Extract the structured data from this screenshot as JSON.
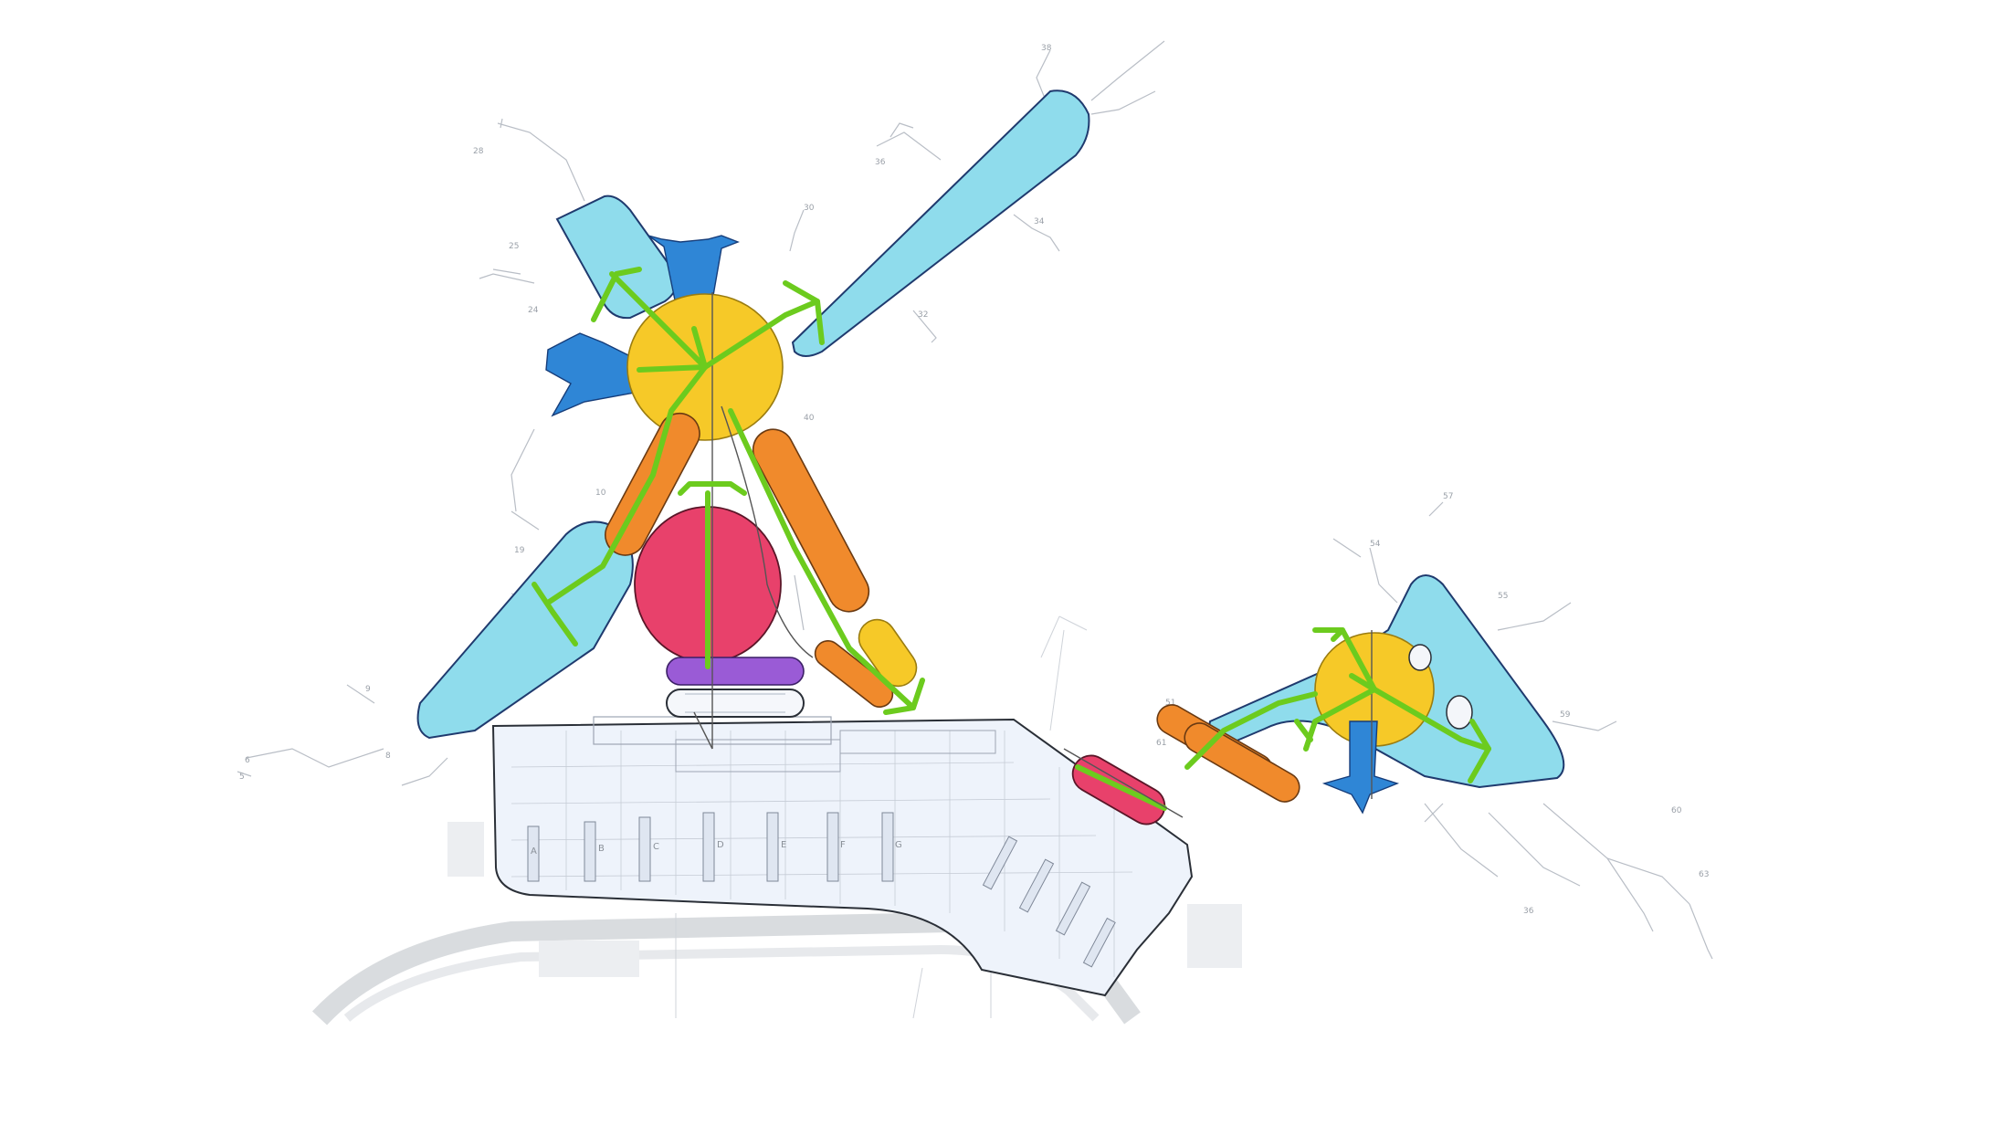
{
  "diagram": {
    "gate_labels": [
      {
        "text": "28"
      },
      {
        "text": "25"
      },
      {
        "text": "24"
      },
      {
        "text": "30"
      },
      {
        "text": "32"
      },
      {
        "text": "34"
      },
      {
        "text": "36"
      },
      {
        "text": "38"
      },
      {
        "text": "40"
      },
      {
        "text": "10"
      },
      {
        "text": "19"
      },
      {
        "text": "9"
      },
      {
        "text": "8"
      },
      {
        "text": "6"
      },
      {
        "text": "5"
      },
      {
        "text": "57"
      },
      {
        "text": "54"
      },
      {
        "text": "55"
      },
      {
        "text": "59"
      },
      {
        "text": "61"
      },
      {
        "text": "51"
      },
      {
        "text": "60"
      },
      {
        "text": "63"
      },
      {
        "text": "36"
      }
    ],
    "checkin_labels": [
      {
        "text": "A"
      },
      {
        "text": "B"
      },
      {
        "text": "C"
      },
      {
        "text": "D"
      },
      {
        "text": "E"
      },
      {
        "text": "F"
      },
      {
        "text": "G"
      }
    ],
    "colors": {
      "pier": "#8fdcec",
      "hub": "#f6c928",
      "corridor": "#f08a2c",
      "central_zone": "#e8416b",
      "purple_band": "#9a5bd6",
      "flow_arrow": "#2f86d6",
      "circulation": "#6ccb1e",
      "terminal_fill": "#eef3fb"
    }
  }
}
